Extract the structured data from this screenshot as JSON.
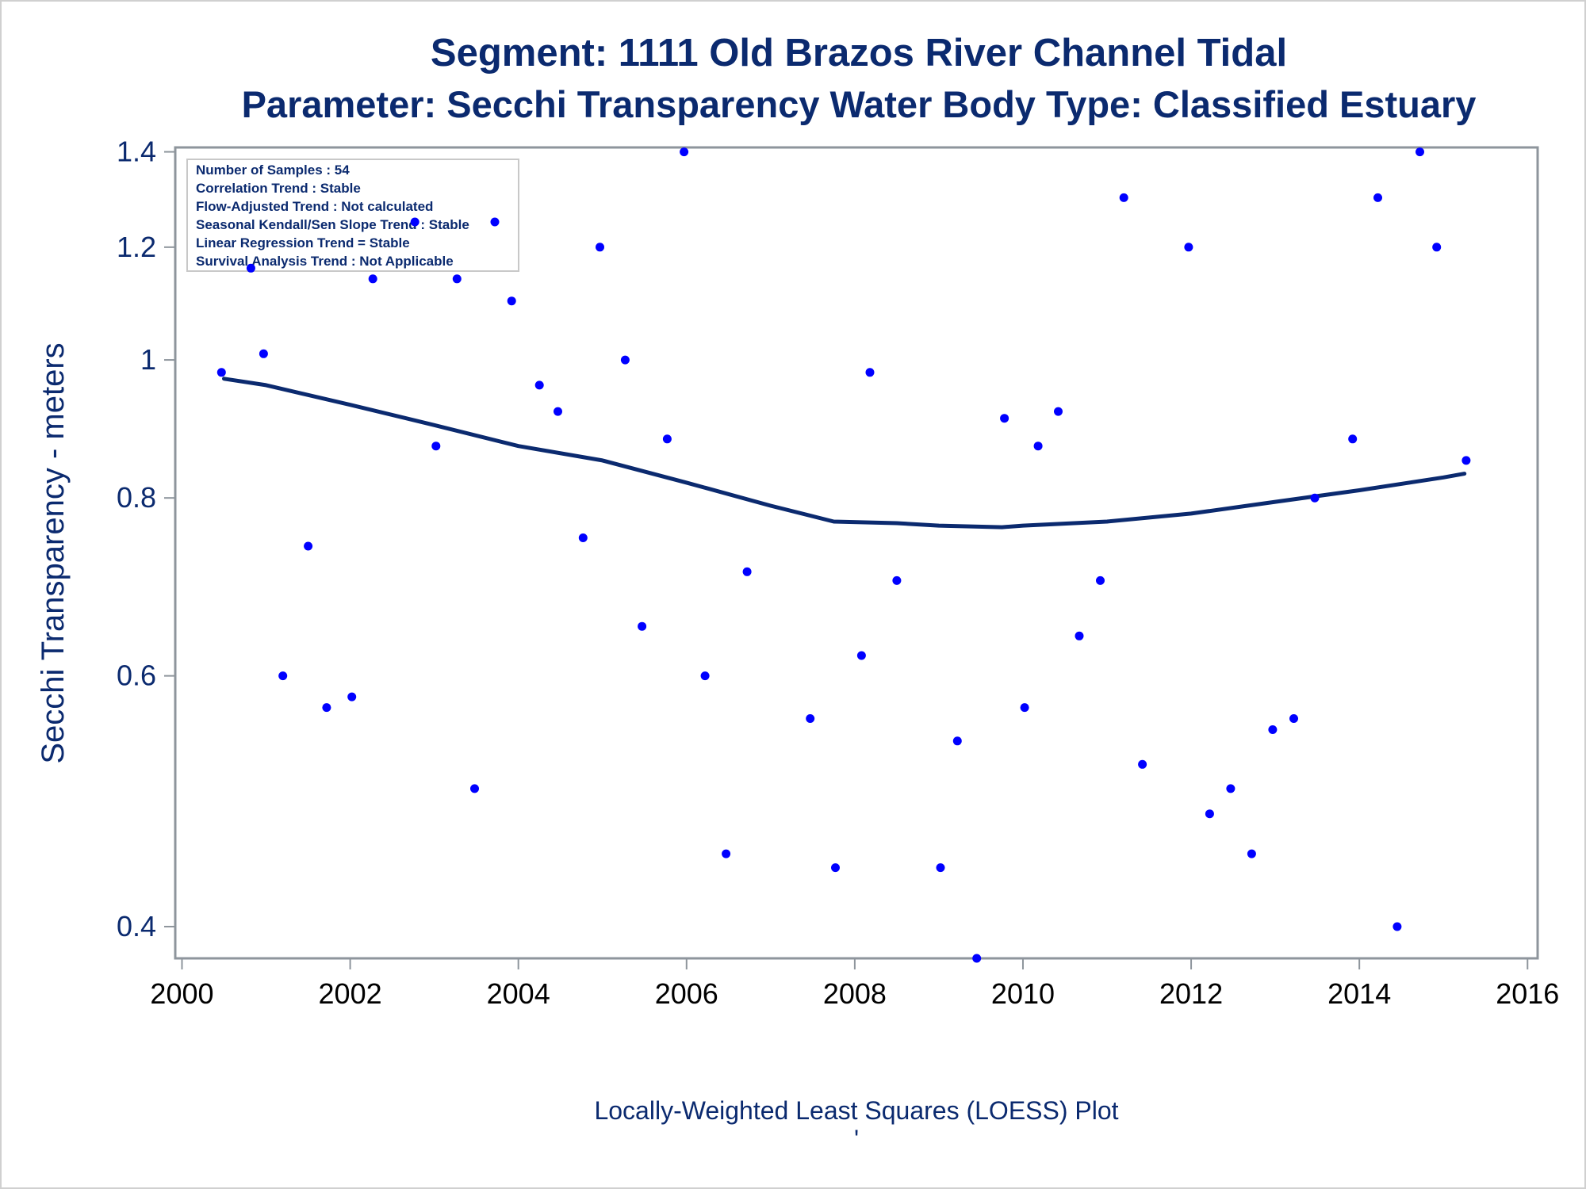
{
  "chart_data": {
    "type": "scatter",
    "title": "Segment: 1111  Old Brazos River Channel Tidal",
    "subtitle": "Parameter: Secchi Transparency   Water Body Type: Classified Estuary",
    "xlabel": "",
    "ylabel": "Secchi Transparency - meters",
    "footnote": "Locally-Weighted Least Squares (LOESS) Plot",
    "footnote_mark": "'",
    "xlim": [
      2000,
      2016
    ],
    "ylim": [
      0.38,
      1.41
    ],
    "yscale": "log",
    "xticks": [
      "2000",
      "2002",
      "2004",
      "2006",
      "2008",
      "2010",
      "2012",
      "2014",
      "2016"
    ],
    "yticks": [
      "0.4",
      "0.6",
      "0.8",
      "1",
      "1.2",
      "1.4"
    ],
    "grid": false,
    "colors": {
      "points": "#0000ff",
      "line": "#0b2a6f",
      "text": "#0b2a6f"
    },
    "stats": [
      "Number of Samples : 54",
      "Correlation Trend : Stable",
      "Flow-Adjusted Trend : Not calculated",
      "Seasonal Kendall/Sen Slope Trend : Stable",
      "Linear Regression Trend = Stable",
      "Survival Analysis Trend : Not Applicable"
    ],
    "series": [
      {
        "type": "scatter",
        "x": [
          2000.47,
          2000.82,
          2000.97,
          2001.2,
          2001.5,
          2001.72,
          2002.02,
          2002.27,
          2002.77,
          2003.02,
          2003.27,
          2003.48,
          2003.72,
          2003.92,
          2004.25,
          2004.47,
          2004.77,
          2004.97,
          2005.27,
          2005.47,
          2005.77,
          2005.97,
          2006.22,
          2006.47,
          2006.72,
          2007.47,
          2007.77,
          2008.08,
          2008.18,
          2008.5,
          2009.02,
          2009.22,
          2009.45,
          2009.78,
          2010.02,
          2010.18,
          2010.42,
          2010.67,
          2010.92,
          2011.2,
          2011.42,
          2011.97,
          2012.22,
          2012.47,
          2012.72,
          2012.97,
          2013.22,
          2013.47,
          2013.92,
          2014.22,
          2014.45,
          2014.72,
          2014.92,
          2015.27
        ],
        "y": [
          0.98,
          1.16,
          1.01,
          0.6,
          0.74,
          0.57,
          0.58,
          1.14,
          1.25,
          0.87,
          1.14,
          0.5,
          1.25,
          1.1,
          0.96,
          0.92,
          0.75,
          1.2,
          1.0,
          0.65,
          0.88,
          1.4,
          0.6,
          0.45,
          0.71,
          0.56,
          0.44,
          0.62,
          0.98,
          0.7,
          0.44,
          0.54,
          0.38,
          0.91,
          0.57,
          0.87,
          0.92,
          0.64,
          0.7,
          1.3,
          0.52,
          1.2,
          0.48,
          0.5,
          0.45,
          0.55,
          0.56,
          0.8,
          0.88,
          1.3,
          0.4,
          1.4,
          1.2,
          0.85
        ]
      },
      {
        "type": "line",
        "x": [
          2000.5,
          2001,
          2002,
          2003,
          2004,
          2005,
          2006,
          2007,
          2007.75,
          2008.5,
          2009,
          2009.75,
          2010,
          2011,
          2012,
          2013,
          2014,
          2015,
          2015.25
        ],
        "y": [
          0.97,
          0.96,
          0.93,
          0.9,
          0.87,
          0.85,
          0.82,
          0.79,
          0.77,
          0.768,
          0.765,
          0.763,
          0.765,
          0.77,
          0.78,
          0.795,
          0.81,
          0.827,
          0.832
        ]
      }
    ]
  }
}
